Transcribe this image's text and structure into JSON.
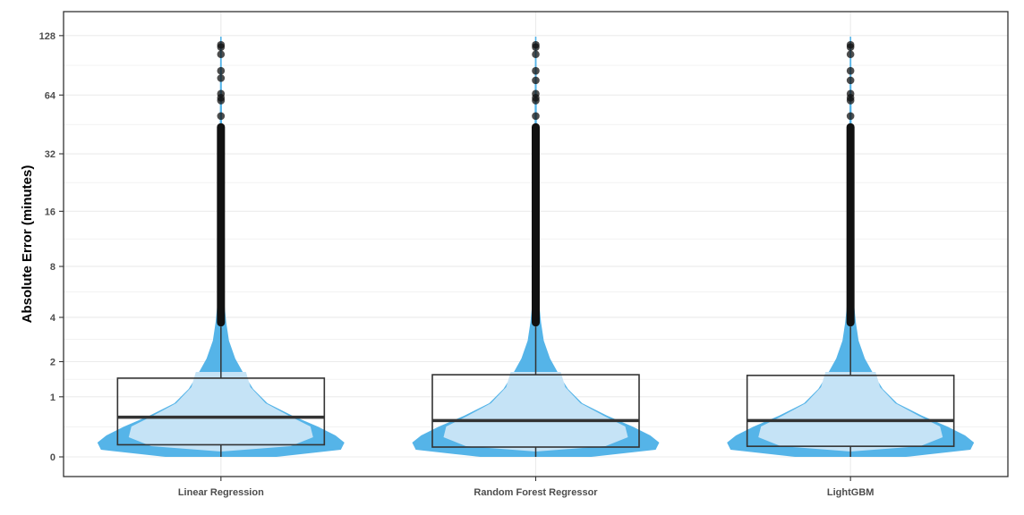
{
  "chart_data": {
    "type": "violin+box",
    "title": "",
    "xlabel": "",
    "ylabel": "Absolute Error (minutes)",
    "y_scale": "log2(1+y)",
    "yticks": [
      0,
      1,
      2,
      4,
      8,
      16,
      32,
      64,
      128
    ],
    "ylim": [
      0,
      130
    ],
    "grid": true,
    "legend": "none",
    "categories": [
      "Linear Regression",
      "Random Forest Regressor",
      "LightGBM"
    ],
    "series": [
      {
        "category": "Linear Regression",
        "box": {
          "min": 0,
          "q1": 0.15,
          "median": 0.58,
          "q3": 1.48,
          "whisker_high": 3.5
        },
        "outliers_dense_range": [
          3.5,
          46
        ],
        "outliers": [
          50,
          60,
          62,
          65,
          78,
          85,
          103,
          112,
          115
        ]
      },
      {
        "category": "Random Forest Regressor",
        "box": {
          "min": 0,
          "q1": 0.12,
          "median": 0.52,
          "q3": 1.58,
          "whisker_high": 3.5
        },
        "outliers_dense_range": [
          3.5,
          46
        ],
        "outliers": [
          50,
          60,
          62,
          65,
          76,
          85,
          103,
          112,
          115
        ]
      },
      {
        "category": "LightGBM",
        "box": {
          "min": 0,
          "q1": 0.13,
          "median": 0.52,
          "q3": 1.56,
          "whisker_high": 3.5
        },
        "outliers_dense_range": [
          3.5,
          46
        ],
        "outliers": [
          50,
          60,
          62,
          65,
          76,
          85,
          103,
          112,
          115
        ]
      }
    ],
    "colors": {
      "violin_outer": "#55b4e8",
      "violin_inner": "#c5e3f6",
      "box_line": "#333333",
      "outlier": "#111111",
      "grid": "#ebebeb",
      "panel_border": "#333333"
    }
  }
}
